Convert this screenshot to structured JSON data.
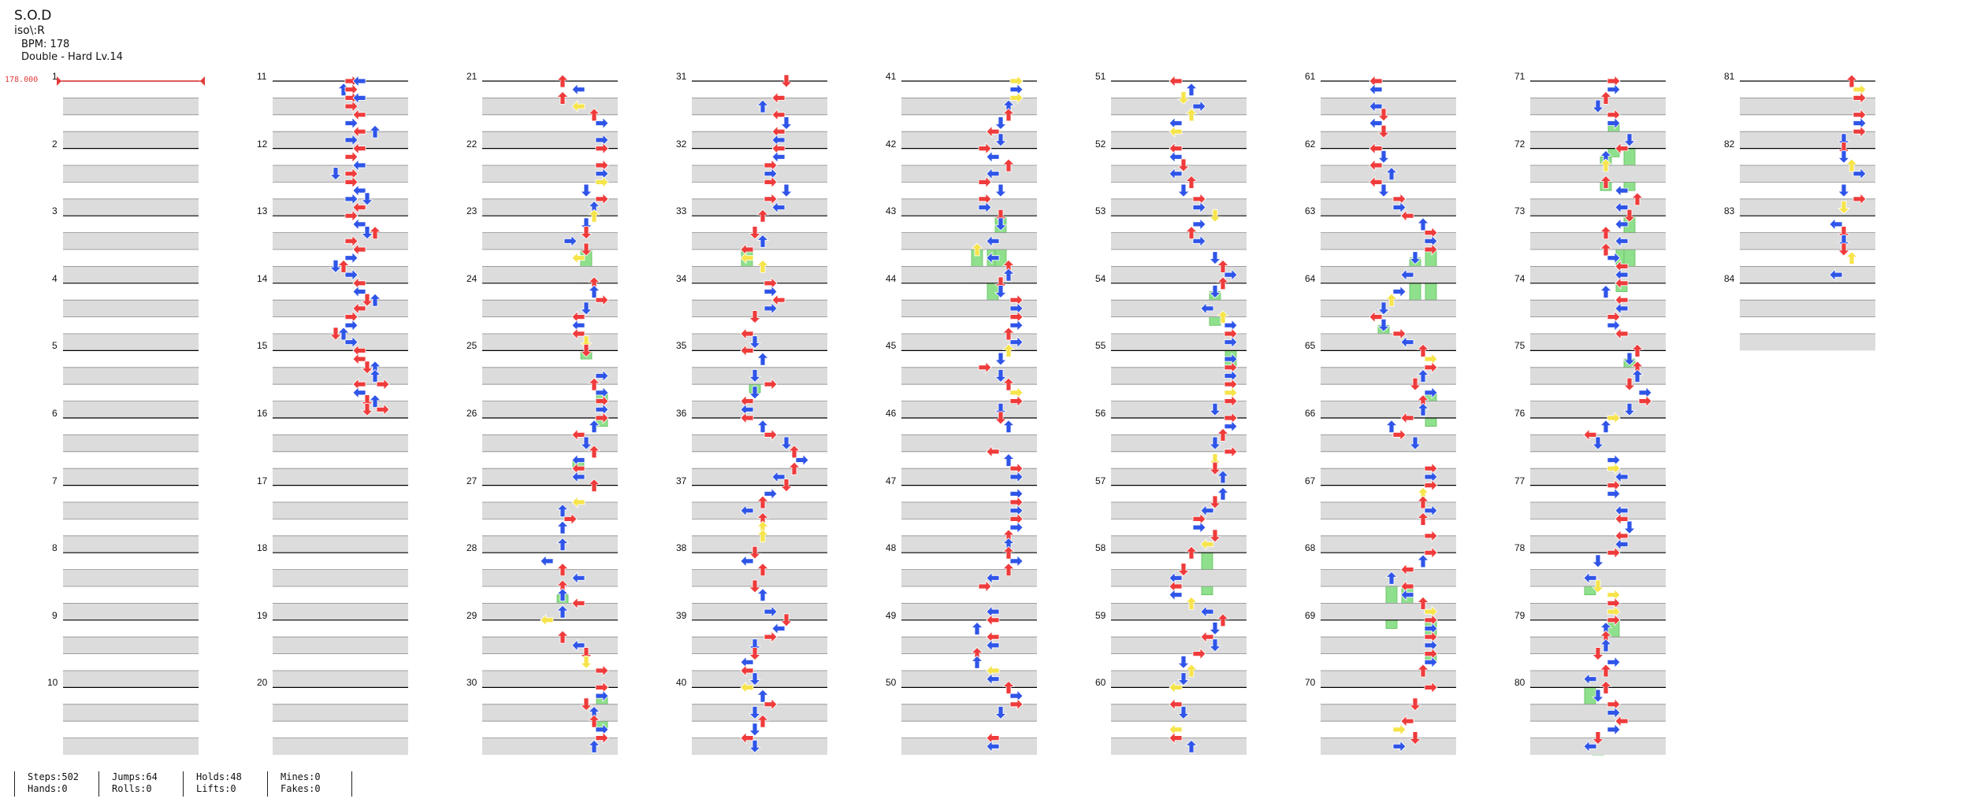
{
  "song": {
    "title": "S.O.D",
    "artist": "iso\\:R",
    "bpm_line": "BPM: 178",
    "difficulty_line": "Double - Hard Lv.14"
  },
  "bpm_marker": "178.000",
  "colors": {
    "red_note": "#ef3b3b",
    "blue_note": "#2f55e8",
    "yellow_note": "#f6e44a",
    "hold_body": "#8fe08c",
    "band_gray": "#dcdcdc",
    "bpm_line": "#e23b3b"
  },
  "measure_labels": [
    "1",
    "2",
    "3",
    "4",
    "5",
    "6",
    "7",
    "8",
    "9",
    "10",
    "11",
    "12",
    "13",
    "14",
    "15",
    "16",
    "17",
    "18",
    "19",
    "20",
    "21",
    "22",
    "23",
    "24",
    "25",
    "26",
    "27",
    "28",
    "29",
    "30",
    "31",
    "32",
    "33",
    "34",
    "35",
    "36",
    "37",
    "38",
    "39",
    "40",
    "41",
    "42",
    "43",
    "44",
    "45",
    "46",
    "47",
    "48",
    "49",
    "50",
    "51",
    "52",
    "53",
    "54",
    "55",
    "56",
    "57",
    "58",
    "59",
    "60",
    "61",
    "62",
    "63",
    "64",
    "65",
    "66",
    "67",
    "68",
    "69",
    "70",
    "71",
    "72",
    "73",
    "74",
    "75",
    "76",
    "77",
    "78",
    "79",
    "80",
    "81",
    "82",
    "83",
    "84"
  ],
  "stats": [
    {
      "top": "Steps:502",
      "bottom": "Hands:0"
    },
    {
      "top": "Jumps:64",
      "bottom": "Rolls:0"
    },
    {
      "top": "Holds:48",
      "bottom": "Lifts:0"
    },
    {
      "top": "Mines:0",
      "bottom": "Fakes:0"
    }
  ],
  "notes": {
    "column_1": [],
    "column_2": [
      {
        "beat": 0.0,
        "lane": 4,
        "color": "red"
      },
      {
        "beat": 0.0,
        "lane": 5,
        "color": "blue"
      },
      {
        "beat": 0.5,
        "lane": 3,
        "color": "blue"
      },
      {
        "beat": 0.5,
        "lane": 4,
        "color": "red"
      },
      {
        "beat": 1.0,
        "lane": 4,
        "color": "red"
      },
      {
        "beat": 1.0,
        "lane": 5,
        "color": "blue"
      },
      {
        "beat": 1.5,
        "lane": 4,
        "color": "red"
      },
      {
        "beat": 2.0,
        "lane": 5,
        "color": "red"
      },
      {
        "beat": 2.5,
        "lane": 4,
        "color": "blue"
      },
      {
        "beat": 3.0,
        "lane": 5,
        "color": "red"
      },
      {
        "beat": 3.0,
        "lane": 7,
        "color": "blue"
      },
      {
        "beat": 3.5,
        "lane": 4,
        "color": "blue"
      },
      {
        "beat": 4.0,
        "lane": 5,
        "color": "red"
      },
      {
        "beat": 4.5,
        "lane": 4,
        "color": "red"
      },
      {
        "beat": 5.0,
        "lane": 5,
        "color": "blue"
      },
      {
        "beat": 5.5,
        "lane": 2,
        "color": "blue"
      },
      {
        "beat": 5.5,
        "lane": 4,
        "color": "red"
      },
      {
        "beat": 6.0,
        "lane": 4,
        "color": "red"
      },
      {
        "beat": 6.5,
        "lane": 5,
        "color": "blue"
      },
      {
        "beat": 7.0,
        "lane": 4,
        "color": "blue"
      },
      {
        "beat": 7.0,
        "lane": 6,
        "color": "blue"
      },
      {
        "beat": 7.5,
        "lane": 5,
        "color": "red"
      },
      {
        "beat": 8.0,
        "lane": 4,
        "color": "red"
      },
      {
        "beat": 8.5,
        "lane": 5,
        "color": "blue"
      },
      {
        "beat": 9.0,
        "lane": 6,
        "color": "blue"
      },
      {
        "beat": 9.0,
        "lane": 7,
        "color": "red"
      },
      {
        "beat": 9.5,
        "lane": 4,
        "color": "red"
      },
      {
        "beat": 10.0,
        "lane": 5,
        "color": "red"
      },
      {
        "beat": 10.5,
        "lane": 4,
        "color": "blue"
      },
      {
        "beat": 11.0,
        "lane": 2,
        "color": "blue"
      },
      {
        "beat": 11.0,
        "lane": 3,
        "color": "red"
      },
      {
        "beat": 11.5,
        "lane": 4,
        "color": "blue"
      },
      {
        "beat": 12.0,
        "lane": 5,
        "color": "red"
      },
      {
        "beat": 12.5,
        "lane": 5,
        "color": "blue"
      },
      {
        "beat": 13.0,
        "lane": 6,
        "color": "red"
      },
      {
        "beat": 13.0,
        "lane": 7,
        "color": "blue"
      },
      {
        "beat": 13.5,
        "lane": 5,
        "color": "red"
      },
      {
        "beat": 14.0,
        "lane": 4,
        "color": "red"
      },
      {
        "beat": 14.5,
        "lane": 4,
        "color": "blue"
      },
      {
        "beat": 15.0,
        "lane": 2,
        "color": "red"
      },
      {
        "beat": 15.0,
        "lane": 3,
        "color": "blue"
      },
      {
        "beat": 15.5,
        "lane": 4,
        "color": "blue"
      },
      {
        "beat": 16.0,
        "lane": 5,
        "color": "red"
      },
      {
        "beat": 16.5,
        "lane": 5,
        "color": "red"
      },
      {
        "beat": 17.0,
        "lane": 6,
        "color": "red"
      },
      {
        "beat": 17.0,
        "lane": 7,
        "color": "blue"
      },
      {
        "beat": 17.5,
        "lane": 7,
        "color": "blue"
      },
      {
        "beat": 18.0,
        "lane": 5,
        "color": "red"
      },
      {
        "beat": 18.0,
        "lane": 8,
        "color": "red"
      },
      {
        "beat": 18.5,
        "lane": 5,
        "color": "blue"
      },
      {
        "beat": 19.0,
        "lane": 6,
        "color": "red"
      },
      {
        "beat": 19.0,
        "lane": 7,
        "color": "blue"
      },
      {
        "beat": 19.5,
        "lane": 6,
        "color": "red"
      },
      {
        "beat": 19.5,
        "lane": 8,
        "color": "red"
      }
    ]
  }
}
